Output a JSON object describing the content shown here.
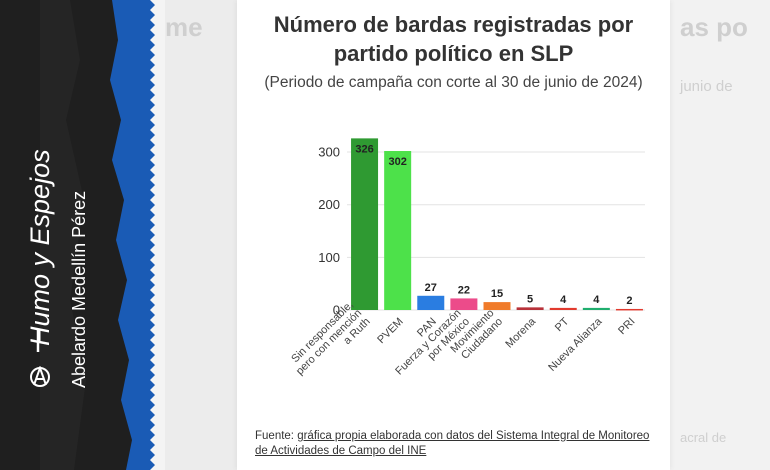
{
  "page": {
    "column_name": "Humo y Espejos",
    "author": "Abelardo Medellín Pérez",
    "source_prefix": "Fuente: ",
    "source_link": "gráfica propia elaborada con datos del Sistema Integral de Monitoreo de Actividades de Campo del INE",
    "colors": {
      "background": "#ececec",
      "left_panel": "#1a5bb5",
      "card": "#ffffff"
    },
    "icons": [
      "anarchy-icon"
    ]
  },
  "chart_data": {
    "type": "bar",
    "title": "Número de bardas registradas por partido político en SLP",
    "subtitle": "(Periodo de campaña con corte al 30 de junio de 2024)",
    "categories": [
      "Sin responsable, pero con mención a Ruth",
      "PVEM",
      "PAN",
      "Fuerza y Corazón por México",
      "Movimiento Ciudadano",
      "Morena",
      "PT",
      "Nueva Alianza",
      "PRI"
    ],
    "values": [
      326,
      302,
      27,
      22,
      15,
      5,
      4,
      4,
      2
    ],
    "data_labels": [
      "326",
      "302",
      "27",
      "22",
      "15",
      "5",
      "4",
      "4",
      "2"
    ],
    "colors": [
      "#2f9a32",
      "#4de14a",
      "#2a7de1",
      "#ec4b8a",
      "#f07b2a",
      "#b8323a",
      "#e23a2e",
      "#1fae6e",
      "#e23a2e"
    ],
    "yticks": [
      0,
      100,
      200,
      300
    ],
    "ylim": [
      0,
      340
    ],
    "grid": true,
    "legend": "none"
  }
}
